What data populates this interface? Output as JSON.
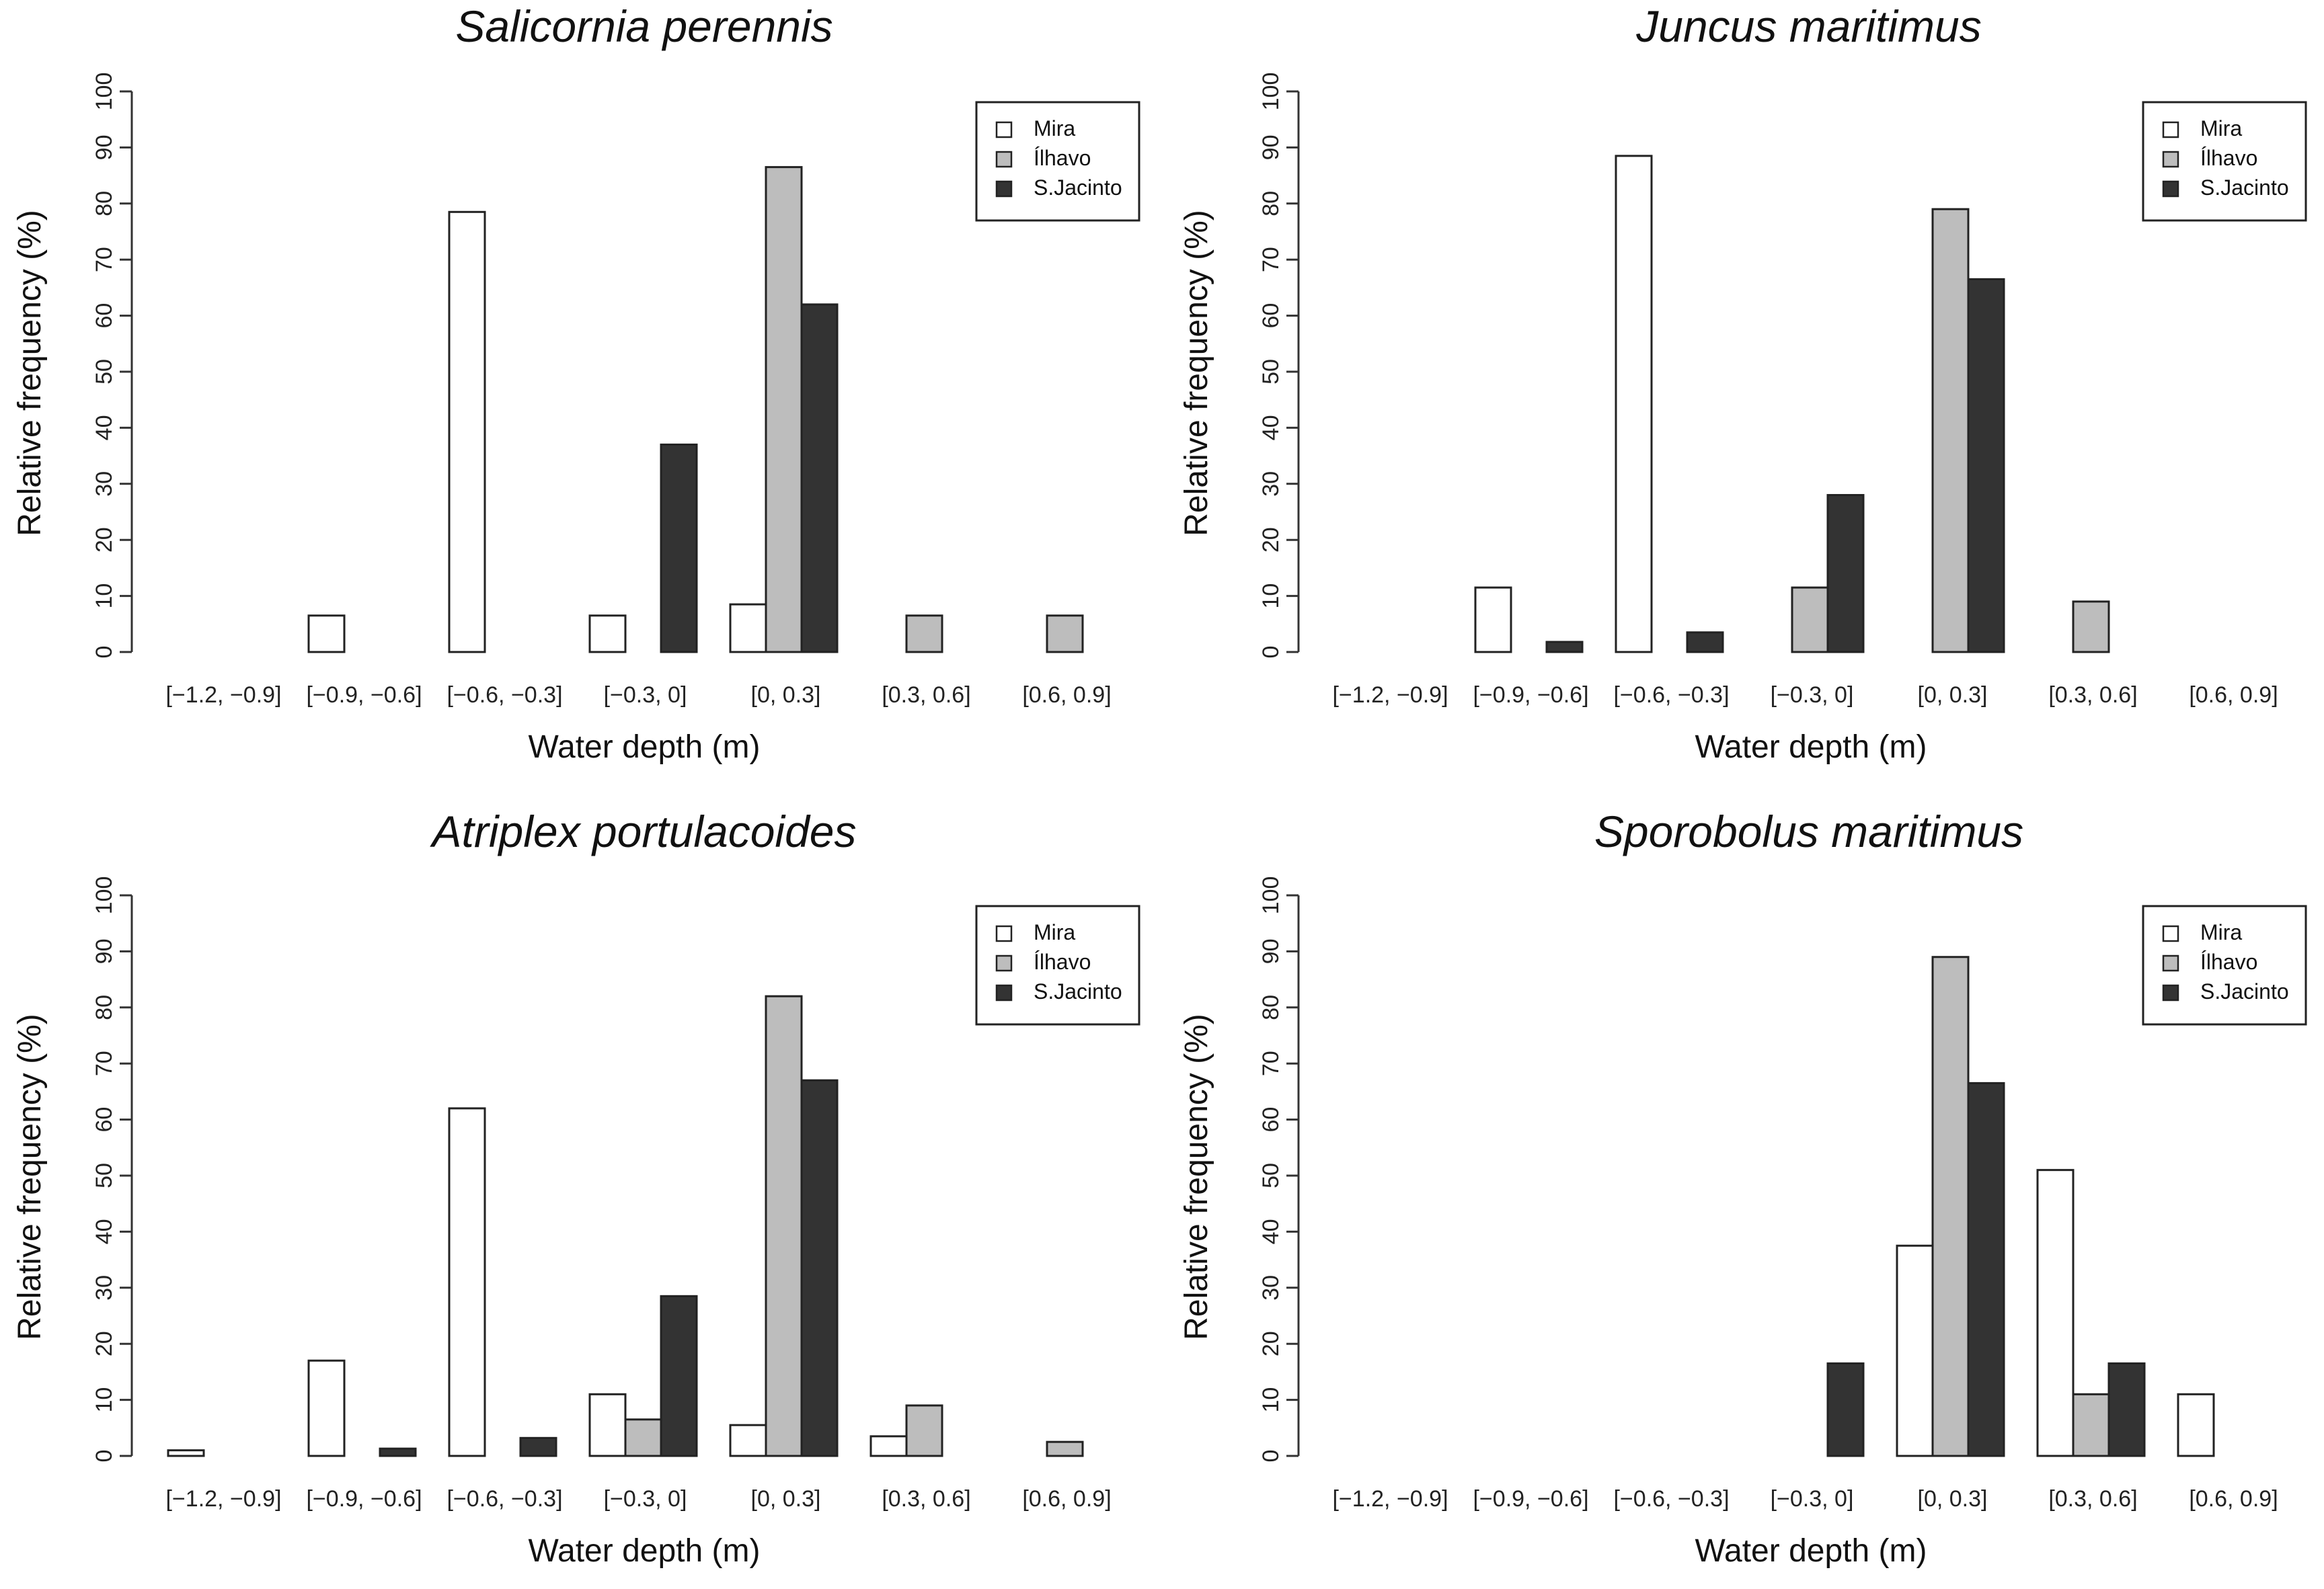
{
  "chart_data": [
    {
      "type": "bar",
      "title": "Salicornia perennis",
      "xlabel": "Water depth (m)",
      "ylabel": "Relative frequency (%)",
      "ylim": [
        0,
        100
      ],
      "yticks": [
        "0",
        "10",
        "20",
        "30",
        "40",
        "50",
        "60",
        "70",
        "80",
        "90",
        "100"
      ],
      "categories": [
        "[−1.2, −0.9]",
        "[−0.9, −0.6]",
        "[−0.6, −0.3]",
        "[−0.3, 0]",
        "[0, 0.3]",
        "[0.3, 0.6]",
        "[0.6, 0.9]"
      ],
      "legend_position": "top-right",
      "series": [
        {
          "name": "Mira",
          "values": [
            0,
            6.5,
            78.5,
            6.5,
            8.5,
            0,
            0
          ]
        },
        {
          "name": "Ílhavo",
          "values": [
            0,
            0,
            0,
            0,
            86.5,
            6.5,
            6.5
          ]
        },
        {
          "name": "S.Jacinto",
          "values": [
            0,
            0,
            0,
            37,
            62,
            0,
            0
          ]
        }
      ]
    },
    {
      "type": "bar",
      "title": "Juncus maritimus",
      "xlabel": "Water depth (m)",
      "ylabel": "Relative frequency (%)",
      "ylim": [
        0,
        100
      ],
      "yticks": [
        "0",
        "10",
        "20",
        "30",
        "40",
        "50",
        "60",
        "70",
        "80",
        "90",
        "100"
      ],
      "categories": [
        "[−1.2, −0.9]",
        "[−0.9, −0.6]",
        "[−0.6, −0.3]",
        "[−0.3, 0]",
        "[0, 0.3]",
        "[0.3, 0.6]",
        "[0.6, 0.9]"
      ],
      "legend_position": "top-right",
      "series": [
        {
          "name": "Mira",
          "values": [
            0,
            11.5,
            88.5,
            0,
            0,
            0,
            0
          ]
        },
        {
          "name": "Ílhavo",
          "values": [
            0,
            0,
            0,
            11.5,
            79,
            9,
            0
          ]
        },
        {
          "name": "S.Jacinto",
          "values": [
            0,
            1.8,
            3.5,
            28,
            66.5,
            0,
            0
          ]
        }
      ]
    },
    {
      "type": "bar",
      "title": "Atriplex portulacoides",
      "xlabel": "Water depth (m)",
      "ylabel": "Relative frequency (%)",
      "ylim": [
        0,
        100
      ],
      "yticks": [
        "0",
        "10",
        "20",
        "30",
        "40",
        "50",
        "60",
        "70",
        "80",
        "90",
        "100"
      ],
      "categories": [
        "[−1.2, −0.9]",
        "[−0.9, −0.6]",
        "[−0.6, −0.3]",
        "[−0.3, 0]",
        "[0, 0.3]",
        "[0.3, 0.6]",
        "[0.6, 0.9]"
      ],
      "legend_position": "top-right",
      "series": [
        {
          "name": "Mira",
          "values": [
            1,
            17,
            62,
            11,
            5.5,
            3.5,
            0
          ]
        },
        {
          "name": "Ílhavo",
          "values": [
            0,
            0,
            0,
            6.5,
            82,
            9,
            2.5
          ]
        },
        {
          "name": "S.Jacinto",
          "values": [
            0,
            1.3,
            3.2,
            28.5,
            67,
            0,
            0
          ]
        }
      ]
    },
    {
      "type": "bar",
      "title": "Sporobolus maritimus",
      "xlabel": "Water depth (m)",
      "ylabel": "Relative frequency (%)",
      "ylim": [
        0,
        100
      ],
      "yticks": [
        "0",
        "10",
        "20",
        "30",
        "40",
        "50",
        "60",
        "70",
        "80",
        "90",
        "100"
      ],
      "categories": [
        "[−1.2, −0.9]",
        "[−0.9, −0.6]",
        "[−0.6, −0.3]",
        "[−0.3, 0]",
        "[0, 0.3]",
        "[0.3, 0.6]",
        "[0.6, 0.9]"
      ],
      "legend_position": "top-right",
      "series": [
        {
          "name": "Mira",
          "values": [
            0,
            0,
            0,
            0,
            37.5,
            51,
            11
          ]
        },
        {
          "name": "Ílhavo",
          "values": [
            0,
            0,
            0,
            0,
            89,
            11,
            0
          ]
        },
        {
          "name": "S.Jacinto",
          "values": [
            0,
            0,
            0,
            16.5,
            66.5,
            16.5,
            0
          ]
        }
      ]
    }
  ],
  "series_colors": {
    "Mira": "#ffffff",
    "Ílhavo": "#bdbdbd",
    "S.Jacinto": "#333333"
  }
}
